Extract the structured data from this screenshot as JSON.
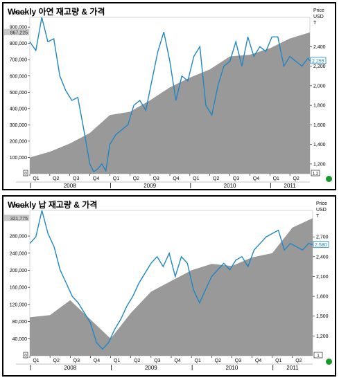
{
  "charts": [
    {
      "id": "zinc",
      "title": "Weekly 아연 재고량 & 가격",
      "left_axis_title": "Price",
      "right_axis_title": [
        "Price",
        "USD",
        "T"
      ],
      "left_ticks": [
        "900,000",
        "800,000",
        "700,000",
        "600,000",
        "500,000",
        "400,000",
        "300,000",
        "200,000",
        "100,000"
      ],
      "right_ticks": [
        "2,400",
        "2,200",
        "2,000",
        "1,800",
        "1,600",
        "1,400",
        "1,200"
      ],
      "last_inventory_label": "867,225",
      "last_price_label": "2,255",
      "left_corner_label": "0",
      "right_corner_label": "1.2",
      "quarter_labels": [
        "Q1",
        "Q2",
        "Q3",
        "Q4",
        "Q1",
        "Q2",
        "Q3",
        "Q4",
        "Q1",
        "Q2",
        "Q3",
        "Q4",
        "Q1",
        "Q2"
      ],
      "year_labels": [
        "2008",
        "2009",
        "2010",
        "2011"
      ],
      "colors": {
        "inventory": "#999999",
        "price": "#1f86c4"
      }
    },
    {
      "id": "lead",
      "title": "Weekly 납 재고량 & 가격",
      "left_axis_title": "Price",
      "right_axis_title": [
        "Price",
        "USD",
        "T"
      ],
      "left_ticks": [
        "280,000",
        "240,000",
        "200,000",
        "160,000",
        "120,000",
        "80,000",
        "40,000"
      ],
      "right_ticks": [
        "2,700",
        "2,400",
        "2,100",
        "1,800",
        "1,500",
        "1,200"
      ],
      "last_inventory_label": "321,775",
      "last_price_label": "2,580",
      "left_corner_label": "0",
      "right_corner_label": "1",
      "quarter_labels": [
        "Q1",
        "Q2",
        "Q3",
        "Q4",
        "Q1",
        "Q2",
        "Q3",
        "Q4",
        "Q1",
        "Q2",
        "Q3",
        "Q4",
        "Q1",
        "Q2"
      ],
      "year_labels": [
        "2008",
        "2009",
        "2010",
        "2011"
      ],
      "colors": {
        "inventory": "#999999",
        "price": "#1f86c4"
      }
    }
  ],
  "chart_data": [
    {
      "type": "area",
      "title": "Weekly 아연 재고량 & 가격",
      "x_range": [
        "2008-01",
        "2011-06"
      ],
      "series": [
        {
          "name": "",
          "axis": "left",
          "type": "area",
          "ylim": [
            0,
            960000
          ],
          "x": [
            0,
            1,
            2,
            3,
            4,
            5,
            6,
            7,
            8,
            9,
            10,
            11,
            12,
            13,
            14
          ],
          "values": [
            100000,
            135000,
            185000,
            250000,
            360000,
            380000,
            450000,
            530000,
            590000,
            640000,
            720000,
            730000,
            770000,
            830000,
            867225
          ]
        },
        {
          "name": "",
          "axis": "right",
          "type": "line",
          "ylim": [
            1100,
            2700
          ],
          "x": [
            0,
            0.3,
            0.6,
            0.9,
            1.2,
            1.5,
            1.8,
            2.1,
            2.4,
            2.7,
            3.0,
            3.2,
            3.4,
            3.6,
            3.8,
            4.0,
            4.3,
            4.6,
            4.9,
            5.2,
            5.5,
            5.8,
            6.1,
            6.4,
            6.7,
            7.0,
            7.3,
            7.6,
            7.9,
            8.2,
            8.5,
            8.8,
            9.1,
            9.4,
            9.7,
            10.0,
            10.3,
            10.6,
            10.9,
            11.2,
            11.5,
            11.8,
            12.1,
            12.4,
            12.7,
            13.0,
            13.3,
            13.6,
            13.9,
            14.0
          ],
          "values": [
            2450,
            2360,
            2700,
            2450,
            2480,
            2100,
            1950,
            1850,
            1880,
            1550,
            1200,
            1120,
            1150,
            1200,
            1130,
            1400,
            1500,
            1550,
            1600,
            1800,
            1850,
            1750,
            2050,
            2350,
            2550,
            2250,
            1850,
            2100,
            2050,
            2300,
            2400,
            1800,
            1700,
            2000,
            2200,
            2250,
            2450,
            2200,
            2500,
            2300,
            2400,
            2350,
            2500,
            2500,
            2200,
            2300,
            2250,
            2200,
            2280,
            2255
          ]
        }
      ]
    },
    {
      "type": "area",
      "title": "Weekly 납 재고량 & 가격",
      "x_range": [
        "2008-01",
        "2011-06"
      ],
      "series": [
        {
          "name": "",
          "axis": "left",
          "type": "area",
          "ylim": [
            0,
            340000
          ],
          "x": [
            0,
            1,
            2,
            3,
            4,
            5,
            6,
            7,
            8,
            9,
            10,
            11,
            12,
            13,
            14
          ],
          "values": [
            90000,
            95000,
            130000,
            85000,
            40000,
            100000,
            150000,
            175000,
            200000,
            215000,
            210000,
            230000,
            240000,
            300000,
            321775
          ]
        },
        {
          "name": "",
          "axis": "right",
          "type": "line",
          "ylim": [
            900,
            3100
          ],
          "x": [
            0,
            0.3,
            0.6,
            0.9,
            1.2,
            1.5,
            1.8,
            2.1,
            2.4,
            2.7,
            3.0,
            3.3,
            3.6,
            3.9,
            4.2,
            4.5,
            4.8,
            5.1,
            5.4,
            5.7,
            6.0,
            6.3,
            6.6,
            6.9,
            7.2,
            7.5,
            7.8,
            8.1,
            8.4,
            8.7,
            9.0,
            9.3,
            9.6,
            9.9,
            10.2,
            10.5,
            10.8,
            11.1,
            11.4,
            11.7,
            12.0,
            12.3,
            12.6,
            12.9,
            13.2,
            13.5,
            13.8,
            14.0
          ],
          "values": [
            2600,
            2700,
            3100,
            2750,
            2550,
            2200,
            2000,
            1800,
            1700,
            1550,
            1400,
            1100,
            1000,
            1100,
            1300,
            1450,
            1650,
            1800,
            2000,
            2150,
            2300,
            2400,
            2250,
            2450,
            2100,
            2400,
            2300,
            1900,
            1700,
            1900,
            2100,
            2200,
            2300,
            2200,
            2350,
            2400,
            2250,
            2500,
            2600,
            2700,
            2750,
            2800,
            2500,
            2600,
            2550,
            2500,
            2600,
            2580
          ]
        }
      ]
    }
  ]
}
